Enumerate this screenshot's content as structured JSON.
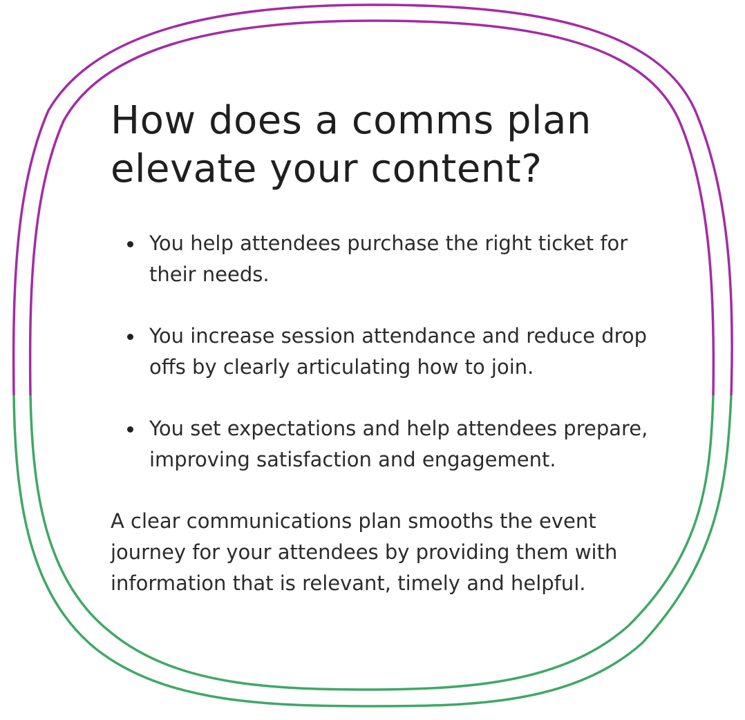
{
  "title": "How does a comms plan elevate your content?",
  "bullets": [
    "You help attendees purchase the right ticket for their needs.",
    "You increase session attendance and reduce drop offs by clearly articulating how to join.",
    "You set expectations and help attendees prepare, improving satisfaction and engagement."
  ],
  "summary": "A clear communications plan smooths the event journey for your attendees by providing them with information that is relevant, timely and helpful.",
  "colors": {
    "outline_top": "#a42ba6",
    "outline_bottom": "#3fa866",
    "text": "#2b2b2b"
  }
}
